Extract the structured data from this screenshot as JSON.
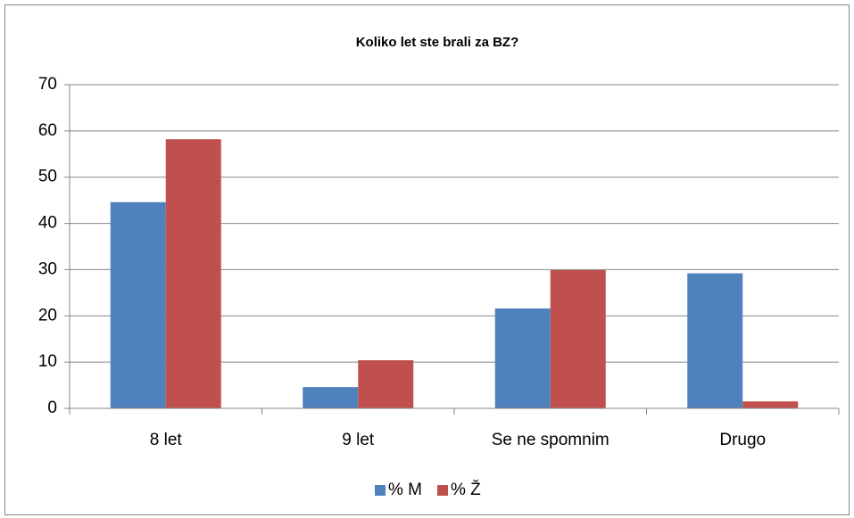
{
  "chart_data": {
    "type": "bar",
    "title": "Koliko let ste brali za BZ?",
    "categories": [
      "8 let",
      "9 let",
      "Se ne spomnim",
      "Drugo"
    ],
    "series": [
      {
        "name": "% M",
        "color": "#4f81bd",
        "values": [
          44.6,
          4.6,
          21.6,
          29.2
        ]
      },
      {
        "name": "% Ž",
        "color": "#c0504d",
        "values": [
          58.2,
          10.4,
          29.9,
          1.5
        ]
      }
    ],
    "ylim": [
      0,
      70
    ],
    "yticks": [
      0,
      10,
      20,
      30,
      40,
      50,
      60,
      70
    ],
    "grid": true,
    "legend": "bottom"
  }
}
